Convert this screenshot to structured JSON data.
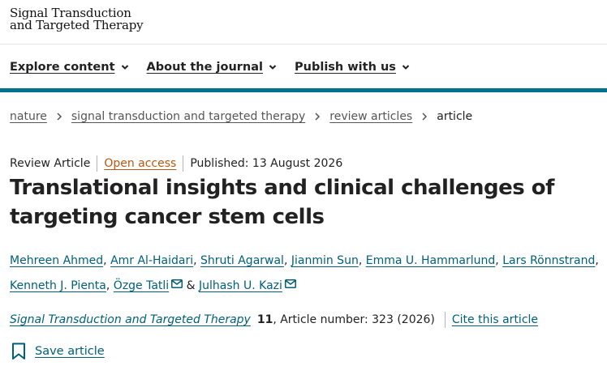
{
  "logo": {
    "line1": "Signal Transduction",
    "line2": "and Targeted Therapy"
  },
  "nav": {
    "items": [
      {
        "label": "Explore content"
      },
      {
        "label": "About the journal"
      },
      {
        "label": "Publish with us"
      }
    ]
  },
  "breadcrumb": {
    "items": [
      "nature",
      "signal transduction and targeted therapy",
      "review articles"
    ],
    "current": "article"
  },
  "article": {
    "type": "Review Article",
    "access": "Open access",
    "published": "Published: 13 August 2026",
    "title": "Translational insights and clinical challenges of targeting cancer stem cells",
    "authors": [
      "Mehreen Ahmed",
      "Amr Al-Haidari",
      "Shruti Agarwal",
      "Jianmin Sun",
      "Emma U. Hammarlund",
      "Lars Rönnstrand",
      "Kenneth J. Pienta",
      "Özge Tatli",
      "Julhash U. Kazi"
    ],
    "author_sep": ",",
    "author_and": "&",
    "journal": "Signal Transduction and Targeted Therapy",
    "volume": "11",
    "article_number": ", Article number: 323 (2026)",
    "cite_label": "Cite this article",
    "save_label": "Save article"
  },
  "colors": {
    "accent": "#00728f",
    "link": "#00607a",
    "open_access": "#b8580f"
  }
}
